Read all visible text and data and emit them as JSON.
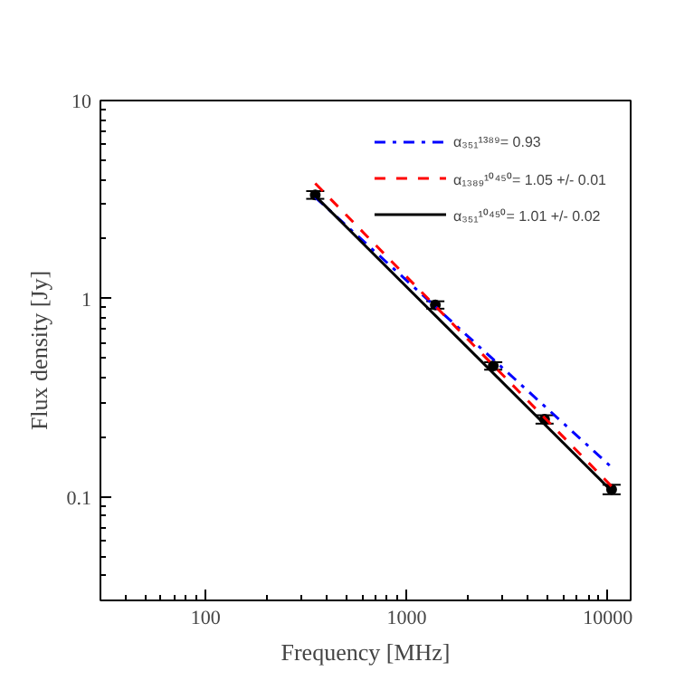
{
  "chart_data": {
    "type": "scatter",
    "xlabel": "Frequency [MHz]",
    "ylabel": "Flux density [Jy]",
    "log": "xy",
    "grid": false,
    "legend": "top right",
    "xlim": [
      30,
      13000
    ],
    "ylim": [
      0.03,
      10
    ],
    "xticks": [
      100,
      1000,
      10000
    ],
    "yticks": [
      0.1,
      1,
      10
    ],
    "series": [
      {
        "color": "#000000",
        "marker": "circle",
        "x": [
          351,
          1389,
          2695,
          4850,
          10450
        ],
        "values": [
          3.34,
          0.93,
          0.458,
          0.246,
          0.109
        ],
        "errors": [
          0.15,
          0.04,
          0.02,
          0.012,
          0.006
        ]
      },
      {
        "type": "line",
        "name": "α₃₅₁¹³⁸⁹= 0.93",
        "color": "#0000ff",
        "line_style": "dashdot",
        "x": [
          351,
          10450
        ],
        "values": [
          3.25,
          0.141
        ]
      },
      {
        "type": "line",
        "name": "α₁₃₈₉¹⁰⁴⁵⁰= 1.05 +/- 0.01",
        "color": "#ff0000",
        "line_style": "dashed",
        "x": [
          351,
          10450
        ],
        "values": [
          3.82,
          0.113
        ]
      },
      {
        "type": "line",
        "name": "α₃₅₁¹⁰⁴⁵⁰= 1.01 +/- 0.02",
        "color": "#000000",
        "line_style": "solid",
        "x": [
          351,
          10450
        ],
        "values": [
          3.3,
          0.107
        ]
      }
    ]
  }
}
